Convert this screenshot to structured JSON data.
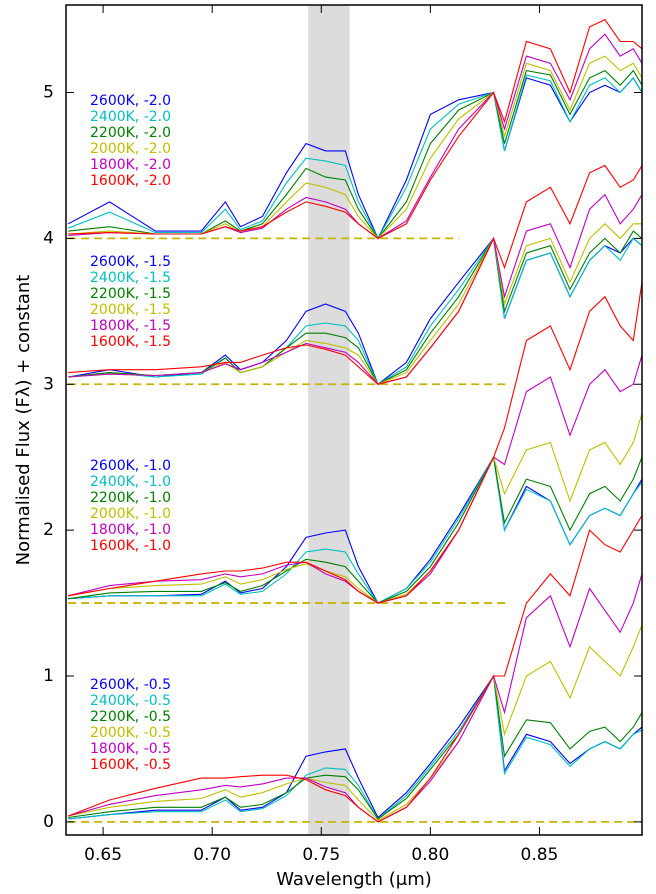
{
  "chart_data": {
    "type": "line",
    "x_label": "Wavelength (μm)",
    "y_label": "Normalised Flux (Fλ) + constant",
    "xlim": [
      0.633,
      0.897
    ],
    "ylim": [
      -0.09,
      5.6
    ],
    "xticks": [
      0.65,
      {
        "value": 0.7,
        "label": "0.70"
      },
      0.75,
      {
        "value": 0.8,
        "label": "0.80"
      },
      0.85
    ],
    "yticks": [
      0,
      1,
      2,
      3,
      4,
      5
    ],
    "shaded_band": [
      0.744,
      0.763
    ],
    "reference_lines": [
      {
        "y": 0,
        "x": [
          0.634,
          0.897
        ]
      },
      {
        "y": 1.5,
        "x": [
          0.634,
          0.836
        ]
      },
      {
        "y": 3,
        "x": [
          0.634,
          0.836
        ]
      },
      {
        "y": 4,
        "x": [
          0.634,
          0.813
        ]
      }
    ],
    "reference_color": "#c8b400",
    "x": [
      0.634,
      0.653,
      0.674,
      0.695,
      0.706,
      0.713,
      0.723,
      0.734,
      0.743,
      0.752,
      0.761,
      0.767,
      0.776,
      0.789,
      0.8,
      0.813,
      0.829,
      0.834,
      0.844,
      0.855,
      0.864,
      0.873,
      0.88,
      0.887,
      0.893,
      0.897
    ],
    "series": [
      {
        "name": "2600K, -2.0",
        "color": "#0000ff",
        "values": [
          4.1,
          4.25,
          4.05,
          4.05,
          4.25,
          4.08,
          4.15,
          4.45,
          4.65,
          4.6,
          4.6,
          4.3,
          4.0,
          4.4,
          4.85,
          4.95,
          5.0,
          4.6,
          5.1,
          5.05,
          4.8,
          5.0,
          5.05,
          5.0,
          5.1,
          5.0
        ]
      },
      {
        "name": "2400K, -2.0",
        "color": "#00bfbf",
        "values": [
          4.07,
          4.18,
          4.04,
          4.04,
          4.2,
          4.06,
          4.12,
          4.38,
          4.55,
          4.53,
          4.5,
          4.25,
          4.0,
          4.35,
          4.75,
          4.92,
          5.0,
          4.6,
          5.12,
          5.08,
          4.8,
          5.05,
          5.1,
          5.0,
          5.1,
          5.0
        ]
      },
      {
        "name": "2200K, -2.0",
        "color": "#007f00",
        "values": [
          4.05,
          4.08,
          4.03,
          4.03,
          4.12,
          4.05,
          4.1,
          4.3,
          4.48,
          4.42,
          4.4,
          4.2,
          4.0,
          4.25,
          4.65,
          4.88,
          5.0,
          4.65,
          5.15,
          5.12,
          4.85,
          5.1,
          5.15,
          5.05,
          5.15,
          5.05
        ]
      },
      {
        "name": "2000K, -2.0",
        "color": "#bfbf00",
        "values": [
          4.03,
          4.05,
          4.03,
          4.03,
          4.1,
          4.04,
          4.08,
          4.25,
          4.38,
          4.35,
          4.3,
          4.15,
          4.0,
          4.2,
          4.55,
          4.82,
          5.0,
          4.7,
          5.2,
          5.15,
          4.88,
          5.2,
          5.25,
          5.15,
          5.2,
          5.1
        ]
      },
      {
        "name": "1800K, -2.0",
        "color": "#bf00bf",
        "values": [
          4.02,
          4.04,
          4.03,
          4.03,
          4.08,
          4.04,
          4.07,
          4.2,
          4.28,
          4.25,
          4.2,
          4.1,
          4.0,
          4.12,
          4.42,
          4.75,
          5.0,
          4.75,
          5.25,
          5.2,
          4.95,
          5.3,
          5.4,
          5.25,
          5.3,
          5.2
        ]
      },
      {
        "name": "1600K, -2.0",
        "color": "#ff0000",
        "values": [
          4.03,
          4.04,
          4.03,
          4.03,
          4.08,
          4.05,
          4.08,
          4.18,
          4.25,
          4.22,
          4.18,
          4.1,
          4.0,
          4.1,
          4.4,
          4.7,
          5.0,
          4.8,
          5.35,
          5.3,
          5.0,
          5.45,
          5.5,
          5.35,
          5.35,
          5.3
        ]
      },
      {
        "name": "2600K, -1.5",
        "color": "#0000ff",
        "values": [
          3.05,
          3.1,
          3.05,
          3.08,
          3.2,
          3.1,
          3.15,
          3.3,
          3.5,
          3.55,
          3.5,
          3.35,
          3.0,
          3.15,
          3.45,
          3.7,
          4.0,
          3.45,
          3.85,
          3.9,
          3.6,
          3.85,
          3.95,
          3.9,
          4.0,
          3.95
        ]
      },
      {
        "name": "2400K, -1.5",
        "color": "#00bfbf",
        "values": [
          3.05,
          3.08,
          3.05,
          3.07,
          3.18,
          3.08,
          3.12,
          3.25,
          3.4,
          3.42,
          3.4,
          3.3,
          3.0,
          3.12,
          3.4,
          3.65,
          4.0,
          3.45,
          3.85,
          3.9,
          3.6,
          3.85,
          3.95,
          3.85,
          4.0,
          3.95
        ]
      },
      {
        "name": "2200K, -1.5",
        "color": "#007f00",
        "values": [
          3.05,
          3.08,
          3.06,
          3.08,
          3.18,
          3.08,
          3.12,
          3.25,
          3.35,
          3.35,
          3.32,
          3.25,
          3.0,
          3.1,
          3.35,
          3.6,
          4.0,
          3.5,
          3.9,
          3.95,
          3.65,
          3.9,
          4.0,
          3.9,
          4.05,
          4.0
        ]
      },
      {
        "name": "2000K, -1.5",
        "color": "#bfbf00",
        "values": [
          3.05,
          3.07,
          3.06,
          3.08,
          3.15,
          3.08,
          3.12,
          3.22,
          3.3,
          3.28,
          3.25,
          3.2,
          3.0,
          3.08,
          3.3,
          3.55,
          4.0,
          3.55,
          3.95,
          4.0,
          3.7,
          4.0,
          4.1,
          4.0,
          4.1,
          4.1
        ]
      },
      {
        "name": "1800K, -1.5",
        "color": "#bf00bf",
        "values": [
          3.05,
          3.07,
          3.06,
          3.08,
          3.14,
          3.1,
          3.15,
          3.22,
          3.28,
          3.25,
          3.22,
          3.15,
          3.0,
          3.05,
          3.25,
          3.5,
          4.0,
          3.6,
          4.05,
          4.1,
          3.8,
          4.2,
          4.3,
          4.1,
          4.2,
          4.3
        ]
      },
      {
        "name": "1600K, -1.5",
        "color": "#ff0000",
        "values": [
          3.08,
          3.1,
          3.1,
          3.12,
          3.15,
          3.15,
          3.2,
          3.25,
          3.27,
          3.24,
          3.2,
          3.12,
          3.0,
          3.05,
          3.25,
          3.5,
          4.0,
          3.8,
          4.25,
          4.35,
          4.1,
          4.45,
          4.5,
          4.35,
          4.4,
          4.5
        ]
      },
      {
        "name": "2600K, -1.0",
        "color": "#0000ff",
        "values": [
          1.53,
          1.55,
          1.55,
          1.56,
          1.65,
          1.57,
          1.6,
          1.75,
          1.95,
          1.98,
          2.0,
          1.75,
          1.5,
          1.6,
          1.8,
          2.1,
          2.5,
          2.0,
          2.3,
          2.2,
          1.9,
          2.1,
          2.15,
          2.1,
          2.25,
          2.35
        ]
      },
      {
        "name": "2400K, -1.0",
        "color": "#00bfbf",
        "values": [
          1.53,
          1.55,
          1.55,
          1.55,
          1.63,
          1.56,
          1.58,
          1.7,
          1.85,
          1.87,
          1.85,
          1.7,
          1.5,
          1.6,
          1.78,
          2.08,
          2.5,
          2.0,
          2.28,
          2.2,
          1.9,
          2.1,
          2.15,
          2.1,
          2.25,
          2.33
        ]
      },
      {
        "name": "2200K, -1.0",
        "color": "#007f00",
        "values": [
          1.53,
          1.57,
          1.58,
          1.58,
          1.64,
          1.58,
          1.62,
          1.72,
          1.8,
          1.78,
          1.75,
          1.65,
          1.5,
          1.58,
          1.75,
          2.05,
          2.5,
          2.05,
          2.35,
          2.3,
          2.0,
          2.25,
          2.3,
          2.2,
          2.35,
          2.5
        ]
      },
      {
        "name": "2000K, -1.0",
        "color": "#bfbf00",
        "values": [
          1.55,
          1.6,
          1.62,
          1.63,
          1.68,
          1.63,
          1.66,
          1.73,
          1.77,
          1.72,
          1.68,
          1.6,
          1.5,
          1.56,
          1.72,
          2.0,
          2.5,
          2.25,
          2.55,
          2.6,
          2.2,
          2.55,
          2.6,
          2.45,
          2.6,
          2.8
        ]
      },
      {
        "name": "1800K, -1.0",
        "color": "#bf00bf",
        "values": [
          1.55,
          1.62,
          1.65,
          1.66,
          1.7,
          1.68,
          1.7,
          1.76,
          1.78,
          1.7,
          1.65,
          1.58,
          1.5,
          1.55,
          1.7,
          2.0,
          2.5,
          2.45,
          2.95,
          3.05,
          2.65,
          3.0,
          3.1,
          2.95,
          3.0,
          3.2
        ]
      },
      {
        "name": "1600K, -1.0",
        "color": "#ff0000",
        "values": [
          1.55,
          1.6,
          1.65,
          1.7,
          1.72,
          1.72,
          1.74,
          1.78,
          1.78,
          1.72,
          1.66,
          1.58,
          1.5,
          1.55,
          1.72,
          2.0,
          2.5,
          2.7,
          3.3,
          3.4,
          3.1,
          3.5,
          3.6,
          3.4,
          3.3,
          3.7
        ]
      },
      {
        "name": "2600K, -0.5",
        "color": "#0000ff",
        "values": [
          0.02,
          0.05,
          0.08,
          0.08,
          0.17,
          0.08,
          0.1,
          0.2,
          0.45,
          0.48,
          0.5,
          0.3,
          0.03,
          0.2,
          0.4,
          0.65,
          1.0,
          0.35,
          0.6,
          0.55,
          0.4,
          0.5,
          0.55,
          0.5,
          0.6,
          0.65
        ]
      },
      {
        "name": "2400K, -0.5",
        "color": "#00bfbf",
        "values": [
          0.02,
          0.05,
          0.07,
          0.07,
          0.15,
          0.07,
          0.09,
          0.18,
          0.32,
          0.37,
          0.36,
          0.25,
          0.02,
          0.18,
          0.38,
          0.62,
          1.0,
          0.33,
          0.58,
          0.53,
          0.38,
          0.5,
          0.55,
          0.5,
          0.6,
          0.63
        ]
      },
      {
        "name": "2200K, -0.5",
        "color": "#007f00",
        "values": [
          0.03,
          0.07,
          0.1,
          0.1,
          0.17,
          0.1,
          0.12,
          0.2,
          0.3,
          0.32,
          0.31,
          0.22,
          0.02,
          0.16,
          0.36,
          0.6,
          1.0,
          0.45,
          0.7,
          0.68,
          0.5,
          0.62,
          0.65,
          0.55,
          0.65,
          0.75
        ]
      },
      {
        "name": "2000K, -0.5",
        "color": "#bfbf00",
        "values": [
          0.04,
          0.1,
          0.14,
          0.16,
          0.22,
          0.17,
          0.2,
          0.26,
          0.3,
          0.27,
          0.25,
          0.15,
          0.01,
          0.12,
          0.3,
          0.55,
          1.0,
          0.6,
          1.0,
          1.1,
          0.85,
          1.2,
          1.1,
          1.0,
          1.2,
          1.35
        ]
      },
      {
        "name": "1800K, -0.5",
        "color": "#bf00bf",
        "values": [
          0.04,
          0.12,
          0.18,
          0.22,
          0.25,
          0.24,
          0.26,
          0.3,
          0.3,
          0.24,
          0.2,
          0.1,
          0.0,
          0.1,
          0.28,
          0.55,
          1.0,
          0.75,
          1.4,
          1.55,
          1.2,
          1.6,
          1.45,
          1.3,
          1.5,
          1.7
        ]
      },
      {
        "name": "1600K, -0.5",
        "color": "#ff0000",
        "values": [
          0.04,
          0.15,
          0.23,
          0.3,
          0.3,
          0.31,
          0.32,
          0.32,
          0.29,
          0.22,
          0.18,
          0.1,
          0.0,
          0.1,
          0.3,
          0.6,
          1.0,
          1.0,
          1.5,
          1.7,
          1.55,
          2.0,
          1.9,
          1.85,
          2.0,
          2.1
        ]
      }
    ]
  }
}
